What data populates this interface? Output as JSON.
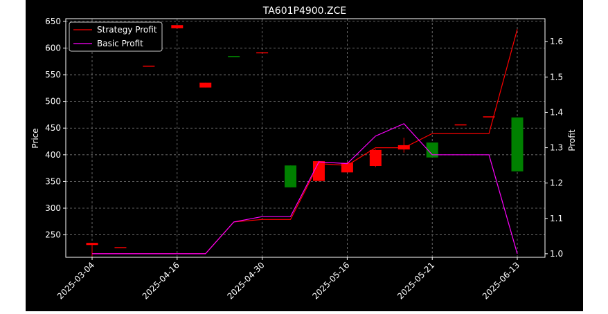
{
  "chart_data": {
    "type": "candlestick",
    "title": "TA601P4900.ZCE",
    "xlabel": "",
    "ylabel_left": "Price",
    "ylabel_right": "Profit",
    "x_tick_labels": [
      "2025-03-04",
      "2025-04-16",
      "2025-04-30",
      "2025-05-16",
      "2025-05-21",
      "2025-06-13"
    ],
    "ylim_left": [
      208,
      655
    ],
    "ylim_right": [
      0.99,
      1.665
    ],
    "y_ticks_left": [
      250,
      300,
      350,
      400,
      450,
      500,
      550,
      600,
      650
    ],
    "y_ticks_right": [
      1.0,
      1.1,
      1.2,
      1.3,
      1.4,
      1.5,
      1.6
    ],
    "grid": true,
    "legend_position": "top-left",
    "colors": {
      "up": "#008000",
      "down": "#ff0000",
      "strategy": "#ff0000",
      "basic": "#ff00ff"
    },
    "candles": [
      {
        "open": 235,
        "close": 231,
        "high": 235,
        "low": 210,
        "color": "down"
      },
      {
        "open": 227,
        "close": 227,
        "high": 227,
        "low": 227,
        "color": "down"
      },
      {
        "open": 567,
        "close": 567,
        "high": 567,
        "low": 567,
        "color": "down"
      },
      {
        "open": 643,
        "close": 637,
        "high": 643,
        "low": 637,
        "color": "down"
      },
      {
        "open": 535,
        "close": 526,
        "high": 535,
        "low": 526,
        "color": "down"
      },
      {
        "open": 585,
        "close": 585,
        "high": 585,
        "low": 585,
        "color": "up"
      },
      {
        "open": 592,
        "close": 592,
        "high": 592,
        "low": 592,
        "color": "down"
      },
      {
        "open": 339,
        "close": 380,
        "high": 380,
        "low": 339,
        "color": "up"
      },
      {
        "open": 388,
        "close": 351,
        "high": 389,
        "low": 350,
        "color": "down"
      },
      {
        "open": 385,
        "close": 367,
        "high": 387,
        "low": 367,
        "color": "down"
      },
      {
        "open": 409,
        "close": 379,
        "high": 410,
        "low": 377,
        "color": "down"
      },
      {
        "open": 418,
        "close": 410,
        "high": 432,
        "low": 404,
        "color": "down"
      },
      {
        "open": 395,
        "close": 423,
        "high": 423,
        "low": 395,
        "color": "up"
      },
      {
        "open": 457,
        "close": 457,
        "high": 457,
        "low": 457,
        "color": "down"
      },
      {
        "open": 472,
        "close": 472,
        "high": 472,
        "low": 472,
        "color": "down"
      },
      {
        "open": 369,
        "close": 470,
        "high": 470,
        "low": 369,
        "color": "up"
      }
    ],
    "series": [
      {
        "name": "Strategy Profit",
        "axis": "right",
        "values": [
          1.0,
          1.0,
          1.0,
          1.0,
          1.0,
          1.09,
          1.097,
          1.097,
          1.255,
          1.25,
          1.3,
          1.3,
          1.34,
          1.34,
          1.34,
          1.635
        ]
      },
      {
        "name": "Basic Profit",
        "axis": "right",
        "values": [
          1.0,
          1.0,
          1.0,
          1.0,
          1.0,
          1.09,
          1.105,
          1.105,
          1.26,
          1.255,
          1.333,
          1.368,
          1.28,
          1.28,
          1.28,
          1.0
        ]
      }
    ]
  }
}
